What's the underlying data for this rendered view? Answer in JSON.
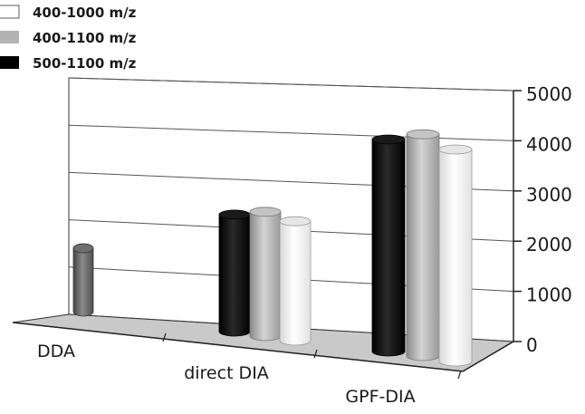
{
  "chart_data": {
    "type": "bar",
    "categories": [
      "DDA",
      "direct DIA",
      "GPF-DIA"
    ],
    "series": [
      {
        "name": "500-1100 m/z",
        "color": "#000000",
        "values": [
          null,
          2400,
          4350
        ]
      },
      {
        "name": "400-1100 m/z",
        "color": "#b3b3b3",
        "values": [
          null,
          2550,
          4550
        ]
      },
      {
        "name": "400-1000 m/z",
        "color": "#ffffff",
        "values": [
          null,
          2450,
          4350
        ]
      }
    ],
    "single": {
      "category": "DDA",
      "value": 1300,
      "color": "#777777"
    },
    "y_ticks": [
      "0",
      "1000",
      "2000",
      "3000",
      "4000",
      "5000"
    ],
    "ylim": [
      0,
      5000
    ],
    "legend_placement": "top-left",
    "legend_order": [
      "400-1000 m/z",
      "400-1100 m/z",
      "500-1100 m/z"
    ],
    "grid": true,
    "style": "3d-cylinder"
  }
}
